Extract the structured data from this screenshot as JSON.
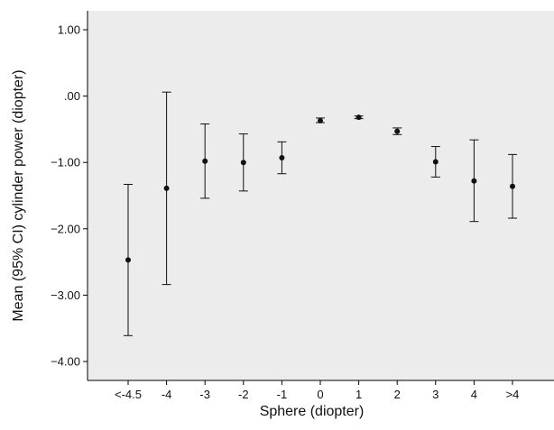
{
  "chart_data": {
    "type": "errorbar",
    "title": "",
    "xlabel": "Sphere (diopter)",
    "ylabel": "Mean (95% CI) cylinder power (diopter)",
    "categories": [
      "<-4.5",
      "-4",
      "-3",
      "-2",
      "-1",
      "0",
      "1",
      "2",
      "3",
      "4",
      ">4"
    ],
    "yticks": [
      1.0,
      0.0,
      -1.0,
      -2.0,
      -3.0,
      -4.0
    ],
    "ytick_labels": [
      "1.00",
      ".00",
      "−1.00",
      "−2.00",
      "−3.00",
      "−4.00"
    ],
    "ylim": [
      -4.3,
      1.3
    ],
    "series": [
      {
        "mean": [
          -2.47,
          -1.39,
          -0.98,
          -1.0,
          -0.93,
          -0.37,
          -0.32,
          -0.53,
          -0.99,
          -1.28,
          -1.36
        ],
        "lower": [
          -3.61,
          -2.84,
          -1.54,
          -1.43,
          -1.17,
          -0.4,
          -0.34,
          -0.58,
          -1.22,
          -1.89,
          -1.84
        ],
        "upper": [
          -1.33,
          0.06,
          -0.42,
          -0.57,
          -0.69,
          -0.33,
          -0.3,
          -0.48,
          -0.76,
          -0.66,
          -0.88
        ]
      }
    ],
    "colors": {
      "plot_background": "#ececec",
      "mark": "#111111",
      "axis": "#000000"
    },
    "grid": false,
    "legend": "none"
  }
}
